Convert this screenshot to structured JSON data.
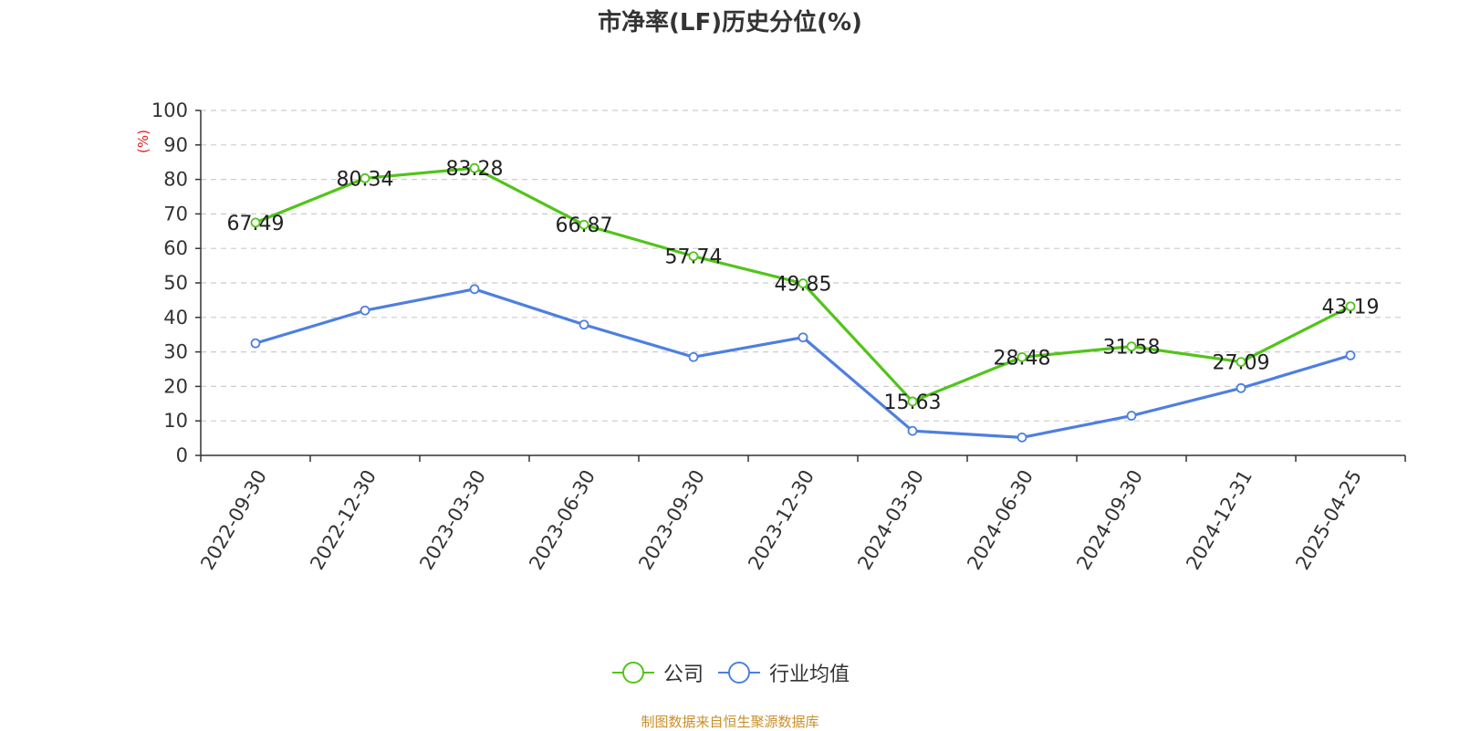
{
  "chart_data": {
    "type": "line",
    "title": "市净率(LF)历史分位(%)",
    "ylabel": "(%)",
    "xlabel": "",
    "ylim": [
      0,
      100
    ],
    "yticks": [
      0,
      10,
      20,
      30,
      40,
      50,
      60,
      70,
      80,
      90,
      100
    ],
    "grid": true,
    "legend_position": "bottom",
    "categories": [
      "2022-09-30",
      "2022-12-30",
      "2023-03-30",
      "2023-06-30",
      "2023-09-30",
      "2023-12-30",
      "2024-03-30",
      "2024-06-30",
      "2024-09-30",
      "2024-12-31",
      "2025-04-25"
    ],
    "series": [
      {
        "name": "公司",
        "color": "#52c41a",
        "values": [
          67.49,
          80.34,
          83.28,
          66.87,
          57.74,
          49.85,
          15.63,
          28.48,
          31.58,
          27.09,
          43.19
        ],
        "labels": [
          "67.49",
          "80.34",
          "83.28",
          "66.87",
          "57.74",
          "49.85",
          "15.63",
          "28.48",
          "31.58",
          "27.09",
          "43.19"
        ]
      },
      {
        "name": "行业均值",
        "color": "#4e7fe0",
        "values": [
          32.5,
          42.0,
          48.2,
          37.9,
          28.5,
          34.2,
          7.1,
          5.2,
          11.5,
          19.5,
          29.0
        ]
      }
    ]
  },
  "footer": {
    "source": "制图数据来自恒生聚源数据库"
  }
}
